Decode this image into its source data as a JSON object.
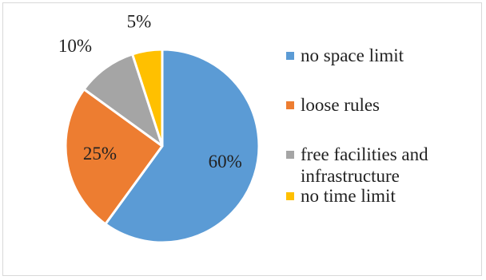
{
  "chart_data": {
    "type": "pie",
    "slices": [
      {
        "label": "no space limit",
        "value": 60,
        "data_label": "60%",
        "color": "#5b9bd5"
      },
      {
        "label": "loose rules",
        "value": 25,
        "data_label": "25%",
        "color": "#ed7d31"
      },
      {
        "label": "free facilities and infrastructure",
        "value": 10,
        "data_label": "10%",
        "color": "#a5a5a5"
      },
      {
        "label": "no time limit",
        "value": 5,
        "data_label": "5%",
        "color": "#ffc000"
      }
    ],
    "legend_position": "right",
    "start_angle_deg": 0,
    "direction": "clockwise"
  }
}
